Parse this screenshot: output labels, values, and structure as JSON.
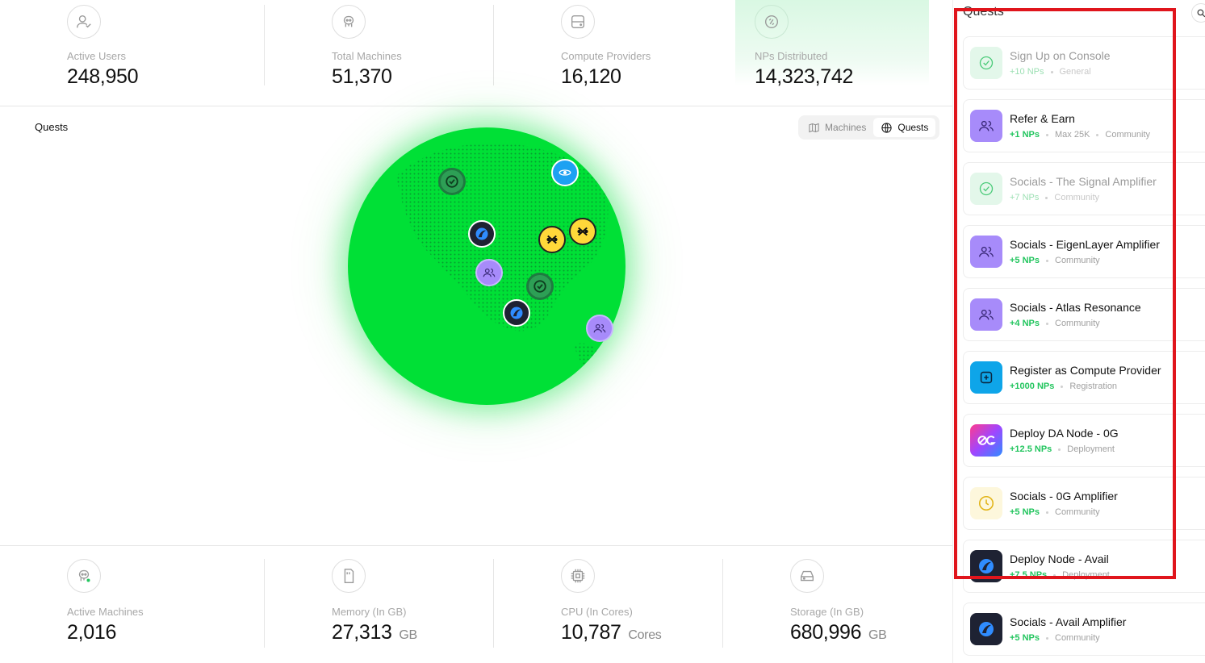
{
  "stats_top": [
    {
      "label": "Active Users",
      "value": "248,950",
      "icon": "user-check-icon"
    },
    {
      "label": "Total Machines",
      "value": "51,370",
      "icon": "robot-icon"
    },
    {
      "label": "Compute Providers",
      "value": "16,120",
      "icon": "server-icon"
    },
    {
      "label": "NPs Distributed",
      "value": "14,323,742",
      "icon": "coin-icon"
    }
  ],
  "stats_bottom": [
    {
      "label": "Active Machines",
      "value": "2,016",
      "unit": "",
      "icon": "robot-active-icon"
    },
    {
      "label": "Memory (In GB)",
      "value": "27,313",
      "unit": "GB",
      "icon": "memory-card-icon"
    },
    {
      "label": "CPU (In Cores)",
      "value": "10,787",
      "unit": "Cores",
      "icon": "cpu-icon"
    },
    {
      "label": "Storage (In GB)",
      "value": "680,996",
      "unit": "GB",
      "icon": "hard-drive-icon"
    }
  ],
  "map": {
    "title": "Quests",
    "toggle": {
      "machines": "Machines",
      "quests": "Quests",
      "active": "quests"
    }
  },
  "panel": {
    "title": "Quests",
    "quests": [
      {
        "title": "Sign Up on Console",
        "np": "+10 NPs",
        "tags": [
          "General"
        ],
        "icon": "check-circle-icon",
        "status": "done"
      },
      {
        "title": "Refer & Earn",
        "np": "+1 NPs",
        "tags": [
          "Max 25K",
          "Community"
        ],
        "icon": "users-icon",
        "status": "open"
      },
      {
        "title": "Socials - The Signal Amplifier",
        "np": "+7 NPs",
        "tags": [
          "Community"
        ],
        "icon": "check-circle-icon",
        "status": "done"
      },
      {
        "title": "Socials - EigenLayer Amplifier",
        "np": "+5 NPs",
        "tags": [
          "Community"
        ],
        "icon": "users-icon",
        "status": "open"
      },
      {
        "title": "Socials - Atlas Resonance",
        "np": "+4 NPs",
        "tags": [
          "Community"
        ],
        "icon": "users-icon",
        "status": "open"
      },
      {
        "title": "Register as Compute Provider",
        "np": "+1000 NPs",
        "tags": [
          "Registration"
        ],
        "icon": "plus-square-icon",
        "status": "open"
      },
      {
        "title": "Deploy DA Node - 0G",
        "np": "+12.5 NPs",
        "tags": [
          "Deployment"
        ],
        "icon": "og-logo-icon",
        "status": "open"
      },
      {
        "title": "Socials - 0G Amplifier",
        "np": "+5 NPs",
        "tags": [
          "Community"
        ],
        "icon": "clock-icon",
        "status": "pending"
      },
      {
        "title": "Deploy Node - Avail",
        "np": "+7.5 NPs",
        "tags": [
          "Deployment"
        ],
        "icon": "avail-logo-icon",
        "status": "open"
      },
      {
        "title": "Socials - Avail Amplifier",
        "np": "+5 NPs",
        "tags": [
          "Community"
        ],
        "icon": "avail-logo-icon",
        "status": "open"
      }
    ]
  },
  "colors": {
    "accent_green": "#22c55e",
    "globe": "#00e036",
    "highlight_box": "#e0151c",
    "purple": "#a78bfa"
  }
}
